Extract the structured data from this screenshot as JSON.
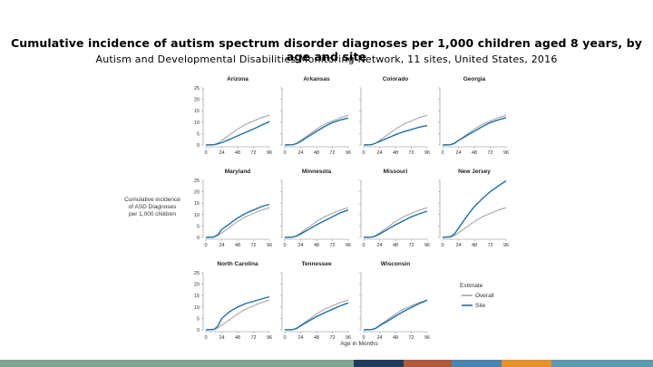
{
  "slide": {
    "title": "Cumulative incidence of autism spectrum disorder diagnoses per 1,000 children aged 8 years, by age and site",
    "subtitle": "Autism and Developmental Disabilities Monitoring Network, 11 sites, United States, 2016"
  },
  "footer_colors": [
    "#7ea693",
    "#1f3a5a",
    "#b05a3c",
    "#4a85b0",
    "#e8902a",
    "#5b9bb0"
  ],
  "chart_data": {
    "type": "line",
    "y_axis_label_lines": [
      "Cumulative incidence",
      "of ASD Diagnoses",
      "per 1,000 children"
    ],
    "x_axis_label": "Age in Months",
    "x_ticks": [
      0,
      24,
      48,
      72,
      96
    ],
    "y_ticks": [
      0,
      5,
      10,
      15,
      20,
      25
    ],
    "xlim": [
      0,
      96
    ],
    "ylim": [
      0,
      25
    ],
    "legend": {
      "title": "Estimate",
      "items": [
        {
          "name": "Overall",
          "color": "#a6a6a6"
        },
        {
          "name": "Site",
          "color": "#1f6fa6"
        }
      ],
      "placement": "bottom-right"
    },
    "colors": {
      "overall": "#a6a6a6",
      "site": "#1f6fa6"
    },
    "overall": {
      "x": [
        0,
        12,
        18,
        24,
        36,
        48,
        60,
        72,
        84,
        96
      ],
      "y": [
        0,
        0.1,
        0.8,
        2.0,
        4.5,
        7.0,
        9.0,
        10.5,
        12.0,
        13.0
      ]
    },
    "panels": [
      {
        "site": "Arizona",
        "x": [
          0,
          12,
          18,
          24,
          36,
          48,
          60,
          72,
          84,
          96
        ],
        "y": [
          0,
          0.1,
          0.5,
          1.0,
          2.5,
          4.0,
          5.5,
          7.0,
          8.7,
          10.2
        ]
      },
      {
        "site": "Arkansas",
        "x": [
          0,
          12,
          18,
          24,
          36,
          48,
          60,
          72,
          84,
          96
        ],
        "y": [
          0,
          0.1,
          0.6,
          1.5,
          3.8,
          6.0,
          8.0,
          9.8,
          11.0,
          11.8
        ]
      },
      {
        "site": "Colorado",
        "x": [
          0,
          12,
          18,
          24,
          36,
          48,
          60,
          72,
          84,
          96
        ],
        "y": [
          0,
          0.1,
          0.8,
          1.5,
          3.0,
          4.5,
          5.8,
          6.8,
          7.8,
          8.5
        ]
      },
      {
        "site": "Georgia",
        "x": [
          0,
          12,
          18,
          24,
          36,
          48,
          60,
          72,
          84,
          96
        ],
        "y": [
          0,
          0.1,
          0.7,
          2.0,
          4.0,
          6.0,
          8.0,
          9.8,
          11.0,
          12.0
        ]
      },
      {
        "site": "Maryland",
        "x": [
          0,
          12,
          18,
          24,
          36,
          48,
          60,
          72,
          84,
          96
        ],
        "y": [
          0,
          0.2,
          1.2,
          3.5,
          6.0,
          8.5,
          10.5,
          12.0,
          13.5,
          14.5
        ]
      },
      {
        "site": "Minnesota",
        "x": [
          0,
          12,
          18,
          24,
          36,
          48,
          60,
          72,
          84,
          96
        ],
        "y": [
          0,
          0.1,
          0.6,
          1.5,
          3.5,
          5.5,
          7.3,
          9.0,
          10.8,
          12.0
        ]
      },
      {
        "site": "Missouri",
        "x": [
          0,
          12,
          18,
          24,
          36,
          48,
          60,
          72,
          84,
          96
        ],
        "y": [
          0,
          0.1,
          0.6,
          1.5,
          3.5,
          5.5,
          7.3,
          9.0,
          10.3,
          11.5
        ]
      },
      {
        "site": "New Jersey",
        "x": [
          0,
          12,
          18,
          24,
          36,
          48,
          60,
          72,
          84,
          96
        ],
        "y": [
          0,
          0.3,
          1.5,
          4.0,
          9.0,
          13.5,
          17.0,
          20.0,
          22.5,
          24.8
        ]
      },
      {
        "site": "North Carolina",
        "x": [
          0,
          12,
          18,
          24,
          36,
          48,
          60,
          72,
          84,
          96
        ],
        "y": [
          0,
          0.2,
          1.5,
          5.0,
          8.0,
          10.0,
          11.5,
          12.5,
          13.5,
          14.5
        ]
      },
      {
        "site": "Tennessee",
        "x": [
          0,
          12,
          18,
          24,
          36,
          48,
          60,
          72,
          84,
          96
        ],
        "y": [
          0,
          0.1,
          0.6,
          1.8,
          3.8,
          5.8,
          7.5,
          9.0,
          10.5,
          11.8
        ]
      },
      {
        "site": "Wisconsin",
        "x": [
          0,
          12,
          18,
          24,
          36,
          48,
          60,
          72,
          84,
          96
        ],
        "y": [
          0,
          0.1,
          0.6,
          1.8,
          3.8,
          6.0,
          8.0,
          9.8,
          11.5,
          13.0
        ]
      }
    ]
  }
}
